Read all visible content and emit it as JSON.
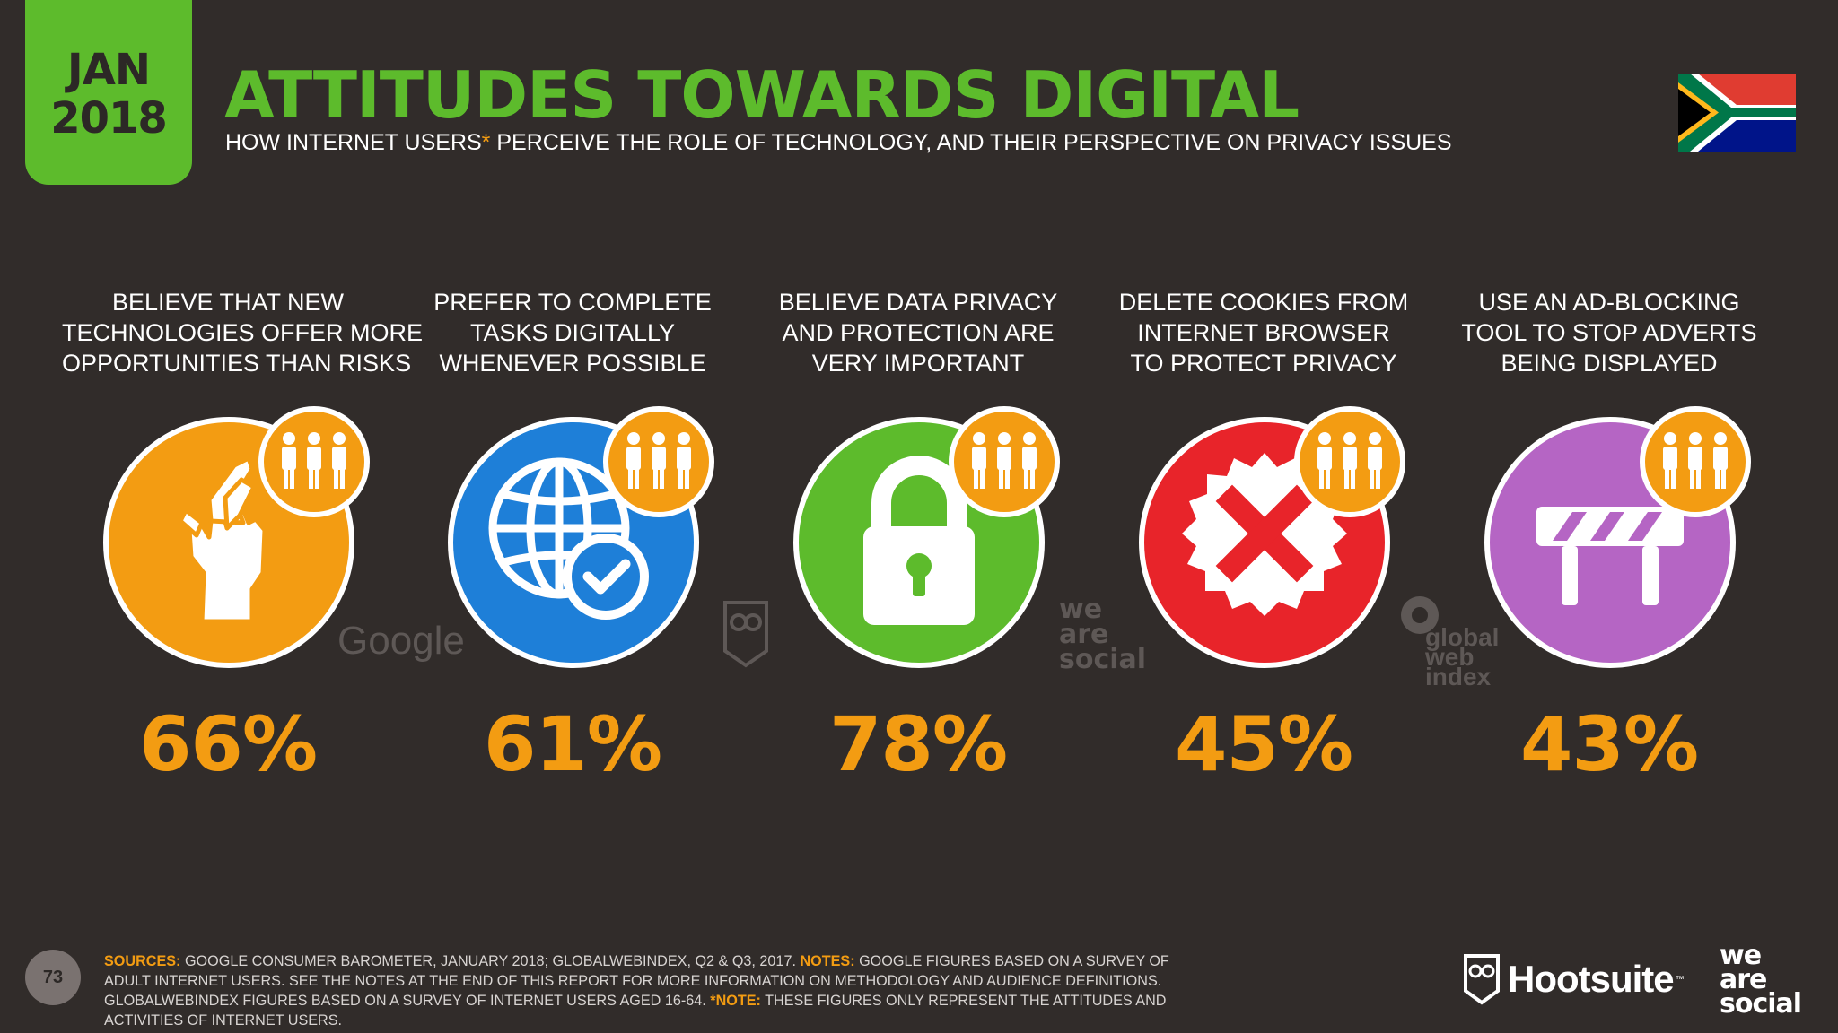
{
  "header": {
    "date_month": "JAN",
    "date_year": "2018",
    "title": "ATTITUDES TOWARDS DIGITAL",
    "subtitle_pre": "HOW INTERNET USERS",
    "subtitle_asterisk": "*",
    "subtitle_post": " PERCEIVE THE ROLE OF TECHNOLOGY, AND THEIR PERSPECTIVE ON PRIVACY ISSUES",
    "flag_icon": "south-africa-flag-icon"
  },
  "stats": [
    {
      "label_lines": [
        "BELIEVE THAT NEW",
        "TECHNOLOGIES OFFER MORE",
        "OPPORTUNITIES THAN RISKS"
      ],
      "value": "66%",
      "percent": 66,
      "color": "#f39c12",
      "icon": "crossed-fingers-icon"
    },
    {
      "label_lines": [
        "PREFER TO COMPLETE",
        "TASKS DIGITALLY",
        "WHENEVER POSSIBLE"
      ],
      "value": "61%",
      "percent": 61,
      "color": "#1e7fd8",
      "icon": "globe-check-icon"
    },
    {
      "label_lines": [
        "BELIEVE DATA PRIVACY",
        "AND PROTECTION ARE",
        "VERY IMPORTANT"
      ],
      "value": "78%",
      "percent": 78,
      "color": "#5dbb2c",
      "icon": "padlock-icon"
    },
    {
      "label_lines": [
        "DELETE COOKIES FROM",
        "INTERNET BROWSER",
        "TO PROTECT PRIVACY"
      ],
      "value": "45%",
      "percent": 45,
      "color": "#e8242a",
      "icon": "x-seal-icon"
    },
    {
      "label_lines": [
        "USE AN AD-BLOCKING",
        "TOOL TO STOP ADVERTS",
        "BEING DISPLAYED"
      ],
      "value": "43%",
      "percent": 43,
      "color": "#b565c4",
      "icon": "roadblock-icon"
    }
  ],
  "watermarks": {
    "google": "Google",
    "social_lines": [
      "we",
      "are",
      "social"
    ],
    "gwi_lines": [
      "global",
      "web",
      "index"
    ]
  },
  "footer": {
    "page_number": "73",
    "sources_label": "SOURCES:",
    "sources_text": " GOOGLE CONSUMER BAROMETER, JANUARY 2018; GLOBALWEBINDEX, Q2 & Q3, 2017. ",
    "notes_label": "NOTES:",
    "notes_text": " GOOGLE FIGURES BASED ON A SURVEY OF ADULT INTERNET USERS. SEE THE NOTES AT THE END OF THIS REPORT FOR MORE INFORMATION ON METHODOLOGY AND AUDIENCE DEFINITIONS. GLOBALWEBINDEX FIGURES BASED ON A SURVEY OF INTERNET USERS AGED 16-64. ",
    "note2_label": "*NOTE:",
    "note2_text": " THESE FIGURES ONLY REPRESENT THE ATTITUDES AND ACTIVITIES OF INTERNET USERS.",
    "hootsuite": "Hootsuite",
    "hootsuite_tm": "™",
    "was_lines": [
      "we",
      "are",
      "social"
    ]
  }
}
